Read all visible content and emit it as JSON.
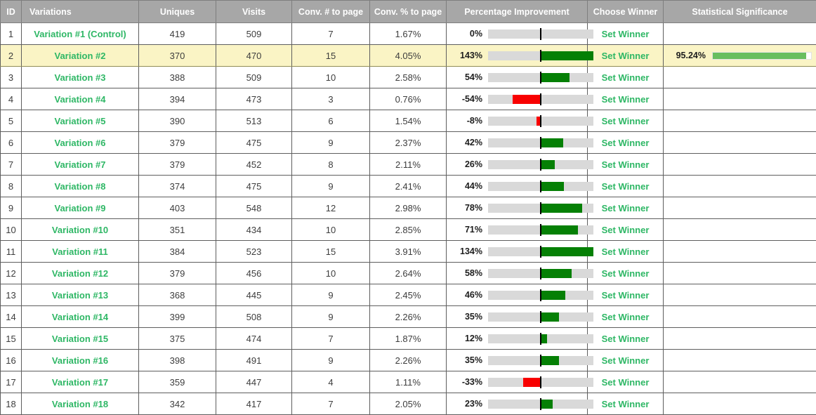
{
  "colors": {
    "header_bg": "#a7a7a7",
    "header_text": "#ffffff",
    "link_green": "#2eb765",
    "bar_positive_green": "#058005",
    "bar_negative_red": "#f80000",
    "bar_track_gray": "#d9d9d9",
    "zero_marker_black": "#000000",
    "significance_fill_green": "#69be5f",
    "highlight_row_bg": "#faf4c5"
  },
  "table": {
    "columns": [
      {
        "key": "id",
        "label": "ID"
      },
      {
        "key": "variation",
        "label": "Variations"
      },
      {
        "key": "uniques",
        "label": "Uniques"
      },
      {
        "key": "visits",
        "label": "Visits"
      },
      {
        "key": "conv_num",
        "label": "Conv. # to page"
      },
      {
        "key": "conv_pct",
        "label": "Conv. % to page"
      },
      {
        "key": "improvement",
        "label": "Percentage Improvement"
      },
      {
        "key": "choose_winner",
        "label": "Choose Winner"
      },
      {
        "key": "significance",
        "label": "Statistical Significance"
      }
    ],
    "set_winner_label": "Set Winner",
    "improvement_scale_max_percent": 100,
    "rows": [
      {
        "id": 1,
        "variation": "Variation #1 (Control)",
        "uniques": 419,
        "visits": 509,
        "conv_num": 7,
        "conv_pct": "1.67%",
        "improvement_value": 0,
        "improvement_label": "0%",
        "significance_label": null,
        "significance_value": null,
        "highlighted": false
      },
      {
        "id": 2,
        "variation": "Variation #2",
        "uniques": 370,
        "visits": 470,
        "conv_num": 15,
        "conv_pct": "4.05%",
        "improvement_value": 143,
        "improvement_label": "143%",
        "significance_label": "95.24%",
        "significance_value": 95.24,
        "highlighted": true
      },
      {
        "id": 3,
        "variation": "Variation #3",
        "uniques": 388,
        "visits": 509,
        "conv_num": 10,
        "conv_pct": "2.58%",
        "improvement_value": 54,
        "improvement_label": "54%",
        "significance_label": null,
        "significance_value": null,
        "highlighted": false
      },
      {
        "id": 4,
        "variation": "Variation #4",
        "uniques": 394,
        "visits": 473,
        "conv_num": 3,
        "conv_pct": "0.76%",
        "improvement_value": -54,
        "improvement_label": "-54%",
        "significance_label": null,
        "significance_value": null,
        "highlighted": false
      },
      {
        "id": 5,
        "variation": "Variation #5",
        "uniques": 390,
        "visits": 513,
        "conv_num": 6,
        "conv_pct": "1.54%",
        "improvement_value": -8,
        "improvement_label": "-8%",
        "significance_label": null,
        "significance_value": null,
        "highlighted": false
      },
      {
        "id": 6,
        "variation": "Variation #6",
        "uniques": 379,
        "visits": 475,
        "conv_num": 9,
        "conv_pct": "2.37%",
        "improvement_value": 42,
        "improvement_label": "42%",
        "significance_label": null,
        "significance_value": null,
        "highlighted": false
      },
      {
        "id": 7,
        "variation": "Variation #7",
        "uniques": 379,
        "visits": 452,
        "conv_num": 8,
        "conv_pct": "2.11%",
        "improvement_value": 26,
        "improvement_label": "26%",
        "significance_label": null,
        "significance_value": null,
        "highlighted": false
      },
      {
        "id": 8,
        "variation": "Variation #8",
        "uniques": 374,
        "visits": 475,
        "conv_num": 9,
        "conv_pct": "2.41%",
        "improvement_value": 44,
        "improvement_label": "44%",
        "significance_label": null,
        "significance_value": null,
        "highlighted": false
      },
      {
        "id": 9,
        "variation": "Variation #9",
        "uniques": 403,
        "visits": 548,
        "conv_num": 12,
        "conv_pct": "2.98%",
        "improvement_value": 78,
        "improvement_label": "78%",
        "significance_label": null,
        "significance_value": null,
        "highlighted": false
      },
      {
        "id": 10,
        "variation": "Variation #10",
        "uniques": 351,
        "visits": 434,
        "conv_num": 10,
        "conv_pct": "2.85%",
        "improvement_value": 71,
        "improvement_label": "71%",
        "significance_label": null,
        "significance_value": null,
        "highlighted": false
      },
      {
        "id": 11,
        "variation": "Variation #11",
        "uniques": 384,
        "visits": 523,
        "conv_num": 15,
        "conv_pct": "3.91%",
        "improvement_value": 134,
        "improvement_label": "134%",
        "significance_label": null,
        "significance_value": null,
        "highlighted": false
      },
      {
        "id": 12,
        "variation": "Variation #12",
        "uniques": 379,
        "visits": 456,
        "conv_num": 10,
        "conv_pct": "2.64%",
        "improvement_value": 58,
        "improvement_label": "58%",
        "significance_label": null,
        "significance_value": null,
        "highlighted": false
      },
      {
        "id": 13,
        "variation": "Variation #13",
        "uniques": 368,
        "visits": 445,
        "conv_num": 9,
        "conv_pct": "2.45%",
        "improvement_value": 46,
        "improvement_label": "46%",
        "significance_label": null,
        "significance_value": null,
        "highlighted": false
      },
      {
        "id": 14,
        "variation": "Variation #14",
        "uniques": 399,
        "visits": 508,
        "conv_num": 9,
        "conv_pct": "2.26%",
        "improvement_value": 35,
        "improvement_label": "35%",
        "significance_label": null,
        "significance_value": null,
        "highlighted": false
      },
      {
        "id": 15,
        "variation": "Variation #15",
        "uniques": 375,
        "visits": 474,
        "conv_num": 7,
        "conv_pct": "1.87%",
        "improvement_value": 12,
        "improvement_label": "12%",
        "significance_label": null,
        "significance_value": null,
        "highlighted": false
      },
      {
        "id": 16,
        "variation": "Variation #16",
        "uniques": 398,
        "visits": 491,
        "conv_num": 9,
        "conv_pct": "2.26%",
        "improvement_value": 35,
        "improvement_label": "35%",
        "significance_label": null,
        "significance_value": null,
        "highlighted": false
      },
      {
        "id": 17,
        "variation": "Variation #17",
        "uniques": 359,
        "visits": 447,
        "conv_num": 4,
        "conv_pct": "1.11%",
        "improvement_value": -33,
        "improvement_label": "-33%",
        "significance_label": null,
        "significance_value": null,
        "highlighted": false
      },
      {
        "id": 18,
        "variation": "Variation #18",
        "uniques": 342,
        "visits": 417,
        "conv_num": 7,
        "conv_pct": "2.05%",
        "improvement_value": 23,
        "improvement_label": "23%",
        "significance_label": null,
        "significance_value": null,
        "highlighted": false
      }
    ]
  }
}
